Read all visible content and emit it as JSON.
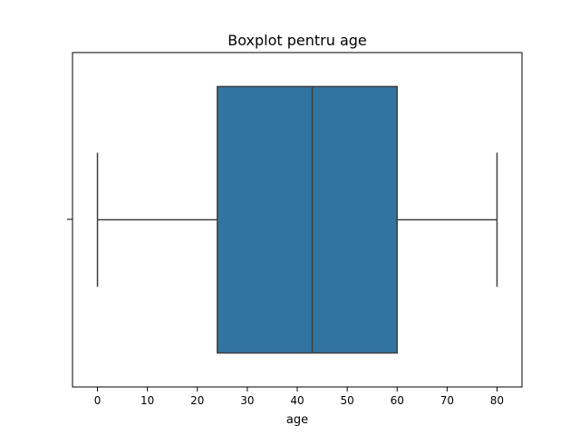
{
  "chart_data": {
    "type": "box",
    "title": "Boxplot pentru age",
    "xlabel": "age",
    "ylabel": "",
    "xlim": [
      -5,
      85
    ],
    "xticks": [
      0,
      10,
      20,
      30,
      40,
      50,
      60,
      70,
      80
    ],
    "grid": false,
    "orientation": "horizontal",
    "series": [
      {
        "whisker_low": 0,
        "q1": 24,
        "median": 43,
        "q3": 60,
        "whisker_high": 80
      }
    ],
    "colors": {
      "box_fill": "#3274a1",
      "lines": "#3f3f3f",
      "frame": "#000000"
    }
  }
}
